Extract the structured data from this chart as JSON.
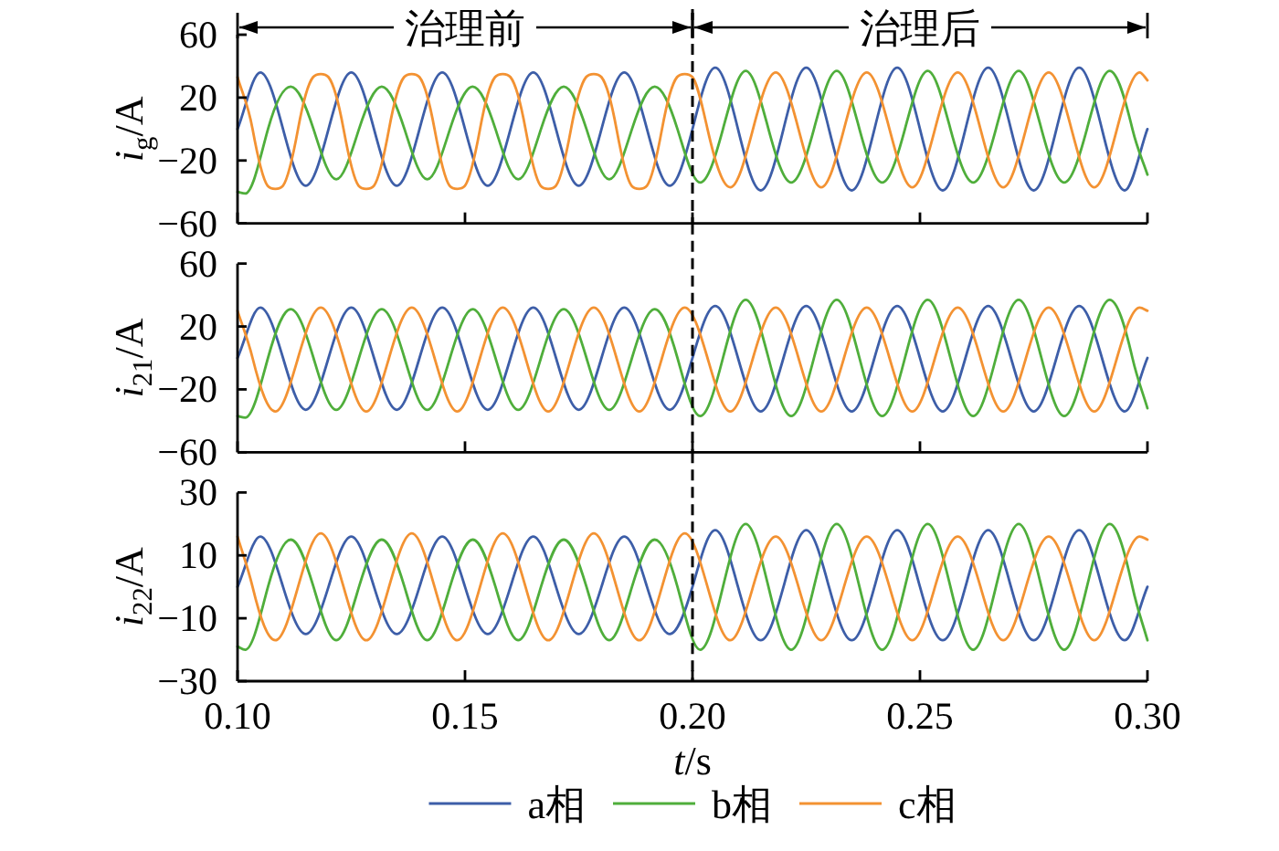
{
  "chart_data": [
    {
      "type": "line",
      "ylabel": "i$_{g}$/A",
      "xlim": [
        0.1,
        0.3
      ],
      "xticks": [
        {
          "value": 0.1,
          "label": null
        },
        {
          "value": 0.15,
          "label": null
        },
        {
          "value": 0.2,
          "label": null
        },
        {
          "value": 0.25,
          "label": null
        },
        {
          "value": 0.3,
          "label": null
        }
      ],
      "ylim": [
        -60,
        60
      ],
      "yticks": [
        {
          "value": -60,
          "label": "−60"
        },
        {
          "value": -20,
          "label": "−20"
        },
        20,
        60
      ],
      "tick_labels": "y",
      "ref_lines": [
        {
          "axis": "x",
          "value": 0.2,
          "color": "#000000",
          "line_style": "dashed"
        }
      ],
      "annotations": [
        "治理前",
        "治理后"
      ],
      "series": [
        {
          "color": "#3d5ea8",
          "x": [
            0.1,
            0.105,
            0.11,
            0.115,
            0.12,
            0.125,
            0.13,
            0.135,
            0.14,
            0.145,
            0.15,
            0.155,
            0.16,
            0.165,
            0.17,
            0.175,
            0.18,
            0.185,
            0.19,
            0.195,
            0.2,
            0.205,
            0.21,
            0.215,
            0.22,
            0.225,
            0.23,
            0.235,
            0.24,
            0.245,
            0.25,
            0.255,
            0.26,
            0.265,
            0.27,
            0.275,
            0.28,
            0.285,
            0.29,
            0.295,
            0.3
          ],
          "values": [
            0,
            36,
            0,
            -36,
            0,
            36,
            0,
            -36,
            0,
            36,
            0,
            -36,
            0,
            36,
            0,
            -36,
            0,
            36,
            0,
            -36,
            0,
            39,
            0,
            -39,
            0,
            39,
            0,
            -39,
            0,
            39,
            0,
            -39,
            0,
            39,
            0,
            -39,
            0,
            39,
            0,
            -39,
            0
          ]
        },
        {
          "color": "#4fae3b",
          "x": [
            0.1,
            0.1017,
            0.1067,
            0.1117,
            0.1167,
            0.1217,
            0.1267,
            0.1317,
            0.1367,
            0.1417,
            0.1467,
            0.1517,
            0.1567,
            0.1617,
            0.1667,
            0.1717,
            0.1767,
            0.1817,
            0.1867,
            0.1917,
            0.1967,
            0.2017,
            0.2067,
            0.2117,
            0.2167,
            0.2217,
            0.2267,
            0.2317,
            0.2367,
            0.2417,
            0.2467,
            0.2517,
            0.2567,
            0.2617,
            0.2667,
            0.2717,
            0.2767,
            0.2817,
            0.2867,
            0.2917,
            0.2967,
            0.3
          ],
          "values": [
            -40,
            -41,
            0,
            27,
            0,
            -32,
            0,
            27,
            0,
            -32,
            0,
            27,
            0,
            -32,
            0,
            27,
            0,
            -32,
            0,
            27,
            0,
            -34,
            0,
            37,
            0,
            -34,
            0,
            37,
            0,
            -34,
            0,
            37,
            0,
            -34,
            0,
            37,
            0,
            -34,
            0,
            37,
            0,
            -29
          ]
        },
        {
          "color": "#f39232",
          "x": [
            0.1,
            0.1033,
            0.1066,
            0.1083,
            0.11,
            0.1133,
            0.1166,
            0.1183,
            0.12,
            0.1233,
            0.1266,
            0.1283,
            0.13,
            0.1333,
            0.1366,
            0.1383,
            0.14,
            0.1433,
            0.1466,
            0.1483,
            0.15,
            0.1533,
            0.1566,
            0.1583,
            0.16,
            0.1633,
            0.1666,
            0.1683,
            0.17,
            0.1733,
            0.1766,
            0.1783,
            0.18,
            0.1833,
            0.1866,
            0.1883,
            0.19,
            0.1933,
            0.1966,
            0.1983,
            0.2,
            0.2033,
            0.2083,
            0.2133,
            0.2183,
            0.2233,
            0.2283,
            0.2333,
            0.2383,
            0.2433,
            0.2483,
            0.2533,
            0.2583,
            0.2633,
            0.2683,
            0.2733,
            0.2783,
            0.2833,
            0.2883,
            0.2933,
            0.2983,
            0.3
          ],
          "values": [
            33,
            0,
            -36,
            -38,
            -36,
            0,
            33,
            35,
            33,
            0,
            -36,
            -38,
            -36,
            0,
            33,
            35,
            33,
            0,
            -36,
            -38,
            -36,
            0,
            33,
            35,
            33,
            0,
            -36,
            -38,
            -36,
            0,
            33,
            35,
            33,
            0,
            -36,
            -38,
            -36,
            0,
            33,
            35,
            33,
            0,
            -37,
            0,
            36,
            0,
            -37,
            0,
            36,
            0,
            -37,
            0,
            36,
            0,
            -37,
            0,
            36,
            0,
            -37,
            0,
            36,
            31
          ]
        }
      ]
    },
    {
      "type": "line",
      "ylabel": "i$_{21}$/A",
      "xlim": [
        0.1,
        0.3
      ],
      "xticks": [
        {
          "value": 0.1,
          "label": null
        },
        {
          "value": 0.15,
          "label": null
        },
        {
          "value": 0.2,
          "label": null
        },
        {
          "value": 0.25,
          "label": null
        },
        {
          "value": 0.3,
          "label": null
        }
      ],
      "ylim": [
        -60,
        60
      ],
      "yticks": [
        {
          "value": -60,
          "label": "−60"
        },
        {
          "value": -20,
          "label": "−20"
        },
        20,
        60
      ],
      "tick_labels": "y",
      "ref_lines": [
        {
          "axis": "x",
          "value": 0.2,
          "color": "#000000",
          "line_style": "dashed"
        }
      ],
      "series": [
        {
          "color": "#3d5ea8",
          "x": [
            0.1,
            0.105,
            0.11,
            0.115,
            0.12,
            0.125,
            0.13,
            0.135,
            0.14,
            0.145,
            0.15,
            0.155,
            0.16,
            0.165,
            0.17,
            0.175,
            0.18,
            0.185,
            0.19,
            0.195,
            0.2,
            0.205,
            0.21,
            0.215,
            0.22,
            0.225,
            0.23,
            0.235,
            0.24,
            0.245,
            0.25,
            0.255,
            0.26,
            0.265,
            0.27,
            0.275,
            0.28,
            0.285,
            0.29,
            0.295,
            0.3
          ],
          "values": [
            0,
            32,
            0,
            -33,
            0,
            32,
            0,
            -33,
            0,
            32,
            0,
            -33,
            0,
            32,
            0,
            -33,
            0,
            32,
            0,
            -33,
            0,
            33,
            0,
            -34,
            0,
            33,
            0,
            -34,
            0,
            33,
            0,
            -34,
            0,
            33,
            0,
            -34,
            0,
            33,
            0,
            -34,
            0
          ]
        },
        {
          "color": "#4fae3b",
          "x": [
            0.1,
            0.1017,
            0.1067,
            0.1117,
            0.1167,
            0.1217,
            0.1267,
            0.1317,
            0.1367,
            0.1417,
            0.1467,
            0.1517,
            0.1567,
            0.1617,
            0.1667,
            0.1717,
            0.1767,
            0.1817,
            0.1867,
            0.1917,
            0.1967,
            0.2017,
            0.2067,
            0.2117,
            0.2167,
            0.2217,
            0.2267,
            0.2317,
            0.2367,
            0.2417,
            0.2467,
            0.2517,
            0.2567,
            0.2617,
            0.2667,
            0.2717,
            0.2767,
            0.2817,
            0.2867,
            0.2917,
            0.2967,
            0.3
          ],
          "values": [
            -37,
            -38,
            0,
            31,
            0,
            -33,
            0,
            31,
            0,
            -33,
            0,
            31,
            0,
            -33,
            0,
            31,
            0,
            -33,
            0,
            31,
            0,
            -37,
            0,
            37,
            0,
            -37,
            0,
            37,
            0,
            -37,
            0,
            37,
            0,
            -37,
            0,
            37,
            0,
            -37,
            0,
            37,
            0,
            -32
          ]
        },
        {
          "color": "#f39232",
          "x": [
            0.1,
            0.1033,
            0.1083,
            0.1133,
            0.1183,
            0.1233,
            0.1283,
            0.1333,
            0.1383,
            0.1433,
            0.1483,
            0.1533,
            0.1583,
            0.1633,
            0.1683,
            0.1733,
            0.1783,
            0.1833,
            0.1883,
            0.1933,
            0.1983,
            0.2033,
            0.2083,
            0.2133,
            0.2183,
            0.2233,
            0.2283,
            0.2333,
            0.2383,
            0.2433,
            0.2483,
            0.2533,
            0.2583,
            0.2633,
            0.2683,
            0.2733,
            0.2783,
            0.2833,
            0.2883,
            0.2933,
            0.2983,
            0.3
          ],
          "values": [
            30,
            0,
            -34,
            0,
            32,
            0,
            -34,
            0,
            32,
            0,
            -34,
            0,
            32,
            0,
            -34,
            0,
            32,
            0,
            -34,
            0,
            32,
            0,
            -34,
            0,
            32,
            0,
            -34,
            0,
            32,
            0,
            -34,
            0,
            32,
            0,
            -34,
            0,
            32,
            0,
            -34,
            0,
            32,
            30
          ]
        }
      ]
    },
    {
      "type": "line",
      "ylabel": "i$_{22}$/A",
      "xlabel": "t/s",
      "xlim": [
        0.1,
        0.3
      ],
      "xticks": [
        {
          "value": 0.1,
          "label": "0.10"
        },
        0.15,
        {
          "value": 0.2,
          "label": "0.20"
        },
        0.25,
        {
          "value": 0.3,
          "label": "0.30"
        }
      ],
      "ylim": [
        -30,
        30
      ],
      "yticks": [
        {
          "value": -30,
          "label": "−30"
        },
        {
          "value": -10,
          "label": "−10"
        },
        10,
        30
      ],
      "ref_lines": [
        {
          "axis": "x",
          "value": 0.2,
          "color": "#000000",
          "line_style": "dashed"
        }
      ],
      "legend": "bottom",
      "series": [
        {
          "name": "a相",
          "color": "#3d5ea8",
          "x": [
            0.1,
            0.105,
            0.11,
            0.115,
            0.12,
            0.125,
            0.13,
            0.135,
            0.14,
            0.145,
            0.15,
            0.155,
            0.16,
            0.165,
            0.17,
            0.175,
            0.18,
            0.185,
            0.19,
            0.195,
            0.2,
            0.205,
            0.21,
            0.215,
            0.22,
            0.225,
            0.23,
            0.235,
            0.24,
            0.245,
            0.25,
            0.255,
            0.26,
            0.265,
            0.27,
            0.275,
            0.28,
            0.285,
            0.29,
            0.295,
            0.3
          ],
          "values": [
            0,
            16,
            0,
            -15,
            0,
            16,
            0,
            -15,
            0,
            16,
            0,
            -15,
            0,
            16,
            0,
            -15,
            0,
            16,
            0,
            -15,
            0,
            18,
            0,
            -17,
            0,
            18,
            0,
            -17,
            0,
            18,
            0,
            -17,
            0,
            18,
            0,
            -17,
            0,
            18,
            0,
            -17,
            0
          ]
        },
        {
          "name": "b相",
          "color": "#4fae3b",
          "x": [
            0.1,
            0.1017,
            0.1067,
            0.1117,
            0.1167,
            0.1217,
            0.1267,
            0.1317,
            0.1367,
            0.1417,
            0.1467,
            0.1517,
            0.1567,
            0.1617,
            0.1667,
            0.1717,
            0.1767,
            0.1817,
            0.1867,
            0.1917,
            0.1967,
            0.2017,
            0.2067,
            0.2117,
            0.2167,
            0.2217,
            0.2267,
            0.2317,
            0.2367,
            0.2417,
            0.2467,
            0.2517,
            0.2567,
            0.2617,
            0.2667,
            0.2717,
            0.2767,
            0.2817,
            0.2867,
            0.2917,
            0.2967,
            0.3
          ],
          "values": [
            -19,
            -20,
            0,
            15,
            0,
            -17,
            0,
            15,
            0,
            -17,
            0,
            15,
            0,
            -17,
            0,
            15,
            0,
            -17,
            0,
            15,
            0,
            -20,
            0,
            20,
            0,
            -20,
            0,
            20,
            0,
            -20,
            0,
            20,
            0,
            -20,
            0,
            20,
            0,
            -20,
            0,
            20,
            0,
            -17
          ]
        },
        {
          "name": "c相",
          "color": "#f39232",
          "x": [
            0.1,
            0.1033,
            0.1083,
            0.1133,
            0.1183,
            0.1233,
            0.1283,
            0.1333,
            0.1383,
            0.1433,
            0.1483,
            0.1533,
            0.1583,
            0.1633,
            0.1683,
            0.1733,
            0.1783,
            0.1833,
            0.1883,
            0.1933,
            0.1983,
            0.2033,
            0.2083,
            0.2133,
            0.2183,
            0.2233,
            0.2283,
            0.2333,
            0.2383,
            0.2433,
            0.2483,
            0.2533,
            0.2583,
            0.2633,
            0.2683,
            0.2733,
            0.2783,
            0.2833,
            0.2883,
            0.2933,
            0.2983,
            0.3
          ],
          "values": [
            16,
            0,
            -17,
            0,
            17,
            0,
            -17,
            0,
            17,
            0,
            -17,
            0,
            17,
            0,
            -17,
            0,
            17,
            0,
            -17,
            0,
            17,
            0,
            -17,
            0,
            16,
            0,
            -17,
            0,
            16,
            0,
            -17,
            0,
            16,
            0,
            -17,
            0,
            16,
            0,
            -17,
            0,
            16,
            15
          ]
        }
      ]
    }
  ]
}
